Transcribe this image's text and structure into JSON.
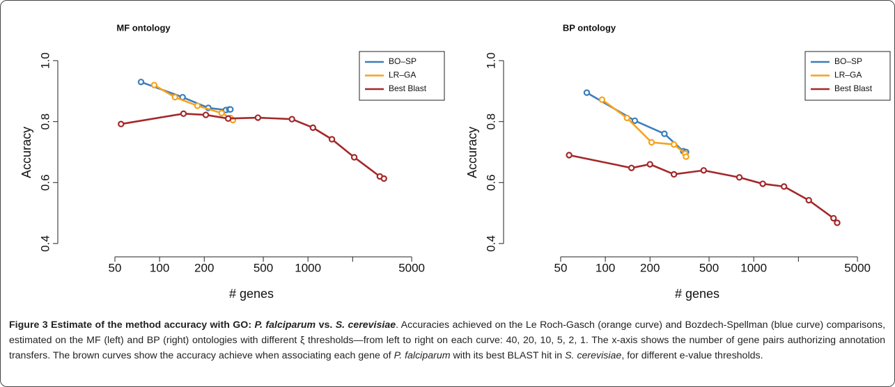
{
  "chart_data": [
    {
      "type": "line",
      "title": "MF ontology",
      "x_label": "# genes",
      "y_label": "Accuracy",
      "xlog": true,
      "xlim": [
        22,
        8300
      ],
      "ylim": [
        0.37,
        1.03
      ],
      "xticks": [
        50,
        100,
        200,
        500,
        1000,
        {
          "value": 2000,
          "label": null
        },
        5000
      ],
      "yticks": [
        0.4,
        0.6,
        0.8,
        {
          "value": 1,
          "label": "1.0"
        }
      ],
      "legend": "topright",
      "series": [
        {
          "name": "BO–SP",
          "color": "#3b7dbb",
          "x": [
            75,
            143,
            213,
            280,
            295,
            300
          ],
          "values": [
            0.93,
            0.88,
            0.845,
            0.838,
            0.84,
            0.84
          ]
        },
        {
          "name": "LR–GA",
          "color": "#f7a21b",
          "x": [
            92,
            127,
            180,
            262,
            300,
            312
          ],
          "values": [
            0.92,
            0.88,
            0.852,
            0.828,
            0.812,
            0.805
          ]
        },
        {
          "name": "Best Blast",
          "color": "#a3282a",
          "x": [
            55,
            145,
            205,
            290,
            460,
            780,
            1080,
            1450,
            2050,
            3050,
            3250
          ],
          "values": [
            0.792,
            0.826,
            0.822,
            0.81,
            0.813,
            0.808,
            0.78,
            0.742,
            0.683,
            0.62,
            0.613
          ]
        }
      ]
    },
    {
      "type": "line",
      "title": "BP ontology",
      "x_label": "# genes",
      "y_label": "Accuracy",
      "xlog": true,
      "xlim": [
        22,
        8300
      ],
      "ylim": [
        0.37,
        1.03
      ],
      "xticks": [
        50,
        100,
        200,
        500,
        1000,
        {
          "value": 2000,
          "label": null
        },
        5000
      ],
      "yticks": [
        0.4,
        0.6,
        0.8,
        {
          "value": 1,
          "label": "1.0"
        }
      ],
      "legend": "topright",
      "series": [
        {
          "name": "BO–SP",
          "color": "#3b7dbb",
          "x": [
            75,
            158,
            250,
            335,
            345,
            350
          ],
          "values": [
            0.895,
            0.803,
            0.76,
            0.703,
            0.699,
            0.7
          ]
        },
        {
          "name": "LR–GA",
          "color": "#f7a21b",
          "x": [
            95,
            140,
            205,
            290,
            345,
            350
          ],
          "values": [
            0.872,
            0.812,
            0.732,
            0.725,
            0.695,
            0.685
          ]
        },
        {
          "name": "Best Blast",
          "color": "#a3282a",
          "x": [
            57,
            150,
            200,
            290,
            460,
            800,
            1150,
            1600,
            2350,
            3450,
            3650
          ],
          "values": [
            0.69,
            0.648,
            0.66,
            0.627,
            0.64,
            0.617,
            0.596,
            0.587,
            0.542,
            0.483,
            0.468
          ]
        }
      ]
    }
  ],
  "caption": [
    {
      "style": "bold",
      "text": "Figure 3 Estimate of the method accuracy with GO: "
    },
    {
      "style": "bold-italic",
      "text": "P. falciparum"
    },
    {
      "style": "bold",
      "text": " vs. "
    },
    {
      "style": "bold-italic",
      "text": "S. cerevisiae"
    },
    {
      "style": "normal",
      "text": ". Accuracies achieved on the Le Roch-Gasch (orange curve) and Bozdech-Spellman (blue curve) comparisons, estimated on the MF (left) and BP (right) ontologies with different ξ thresholds—from left to right on each curve: 40, 20, 10, 5, 2, 1. The x-axis shows the number of gene pairs authorizing annotation transfers. The brown curves show the accuracy achieve when associating each gene of "
    },
    {
      "style": "italic",
      "text": "P. falciparum"
    },
    {
      "style": "normal",
      "text": " with its best BLAST hit in "
    },
    {
      "style": "italic",
      "text": "S. cerevisiae"
    },
    {
      "style": "normal",
      "text": ", for different e-value thresholds."
    }
  ]
}
